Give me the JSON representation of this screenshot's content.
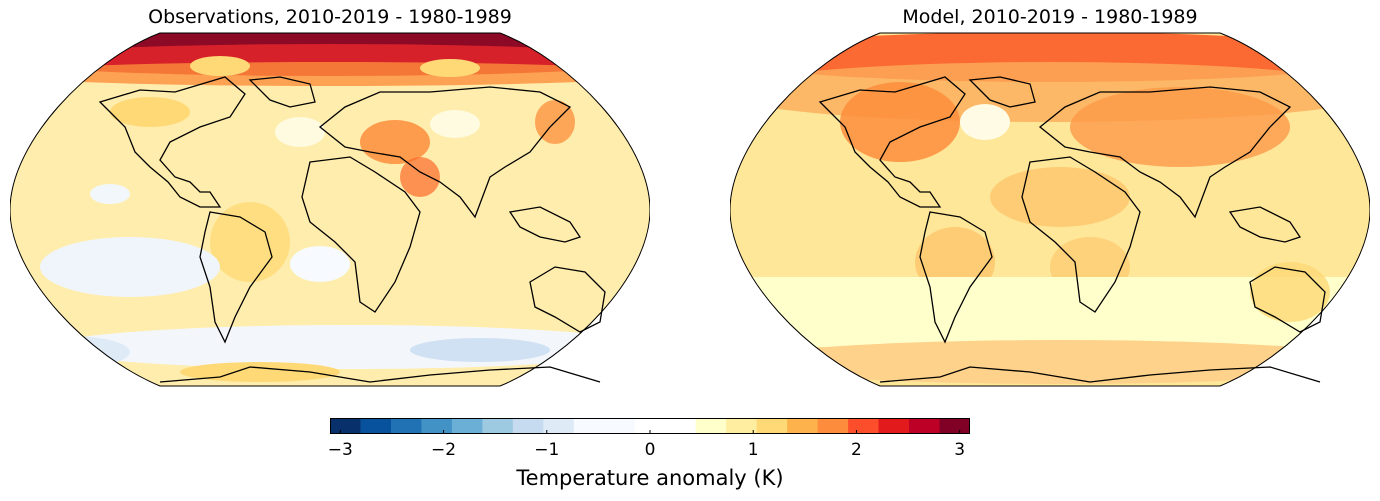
{
  "panels": [
    {
      "id": "left",
      "title": "Observations, 2010-2019 - 1980-1989"
    },
    {
      "id": "right",
      "title": "Model, 2010-2019 - 1980-1989"
    }
  ],
  "colorbar": {
    "label": "Temperature anomaly (K)",
    "range": [
      -3.1,
      3.1
    ],
    "ticks": [
      -3,
      -2,
      -1,
      0,
      1,
      2,
      3
    ],
    "tick_labels": [
      "−3",
      "−2",
      "−1",
      "0",
      "1",
      "2",
      "3"
    ],
    "colormap": "RdBu_r-like diverging (blue negative, yellow/orange/red positive)",
    "colors": [
      "#08306b",
      "#08519c",
      "#2171b5",
      "#4292c6",
      "#6baed6",
      "#9ecae1",
      "#c6dbef",
      "#deebf7",
      "#f7fbff",
      "#ffffff",
      "#ffffcc",
      "#ffeda0",
      "#fed976",
      "#feb24c",
      "#fd8d3c",
      "#fc4e2a",
      "#e31a1c",
      "#bd0026",
      "#800026"
    ]
  },
  "projection": "Robinson (global)"
}
